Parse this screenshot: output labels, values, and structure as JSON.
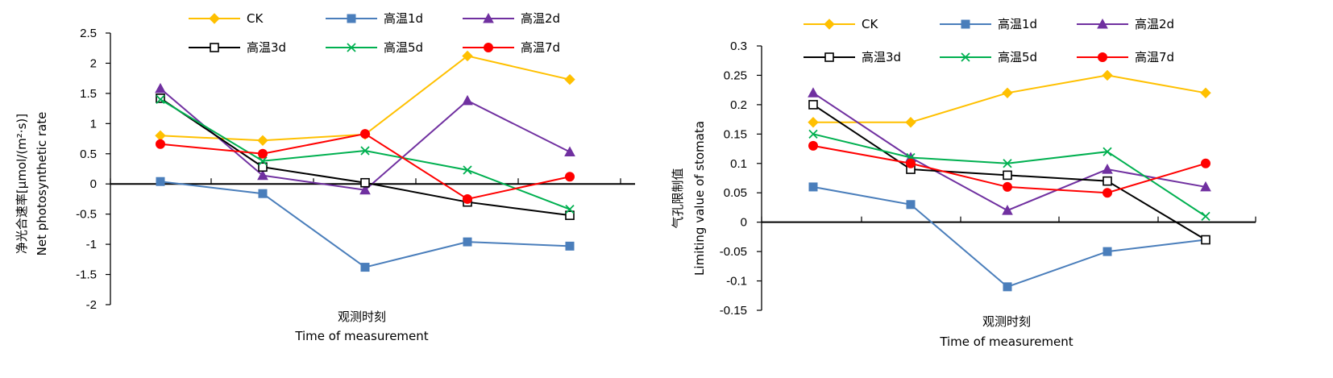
{
  "chart_data": [
    {
      "type": "line",
      "xlabel_cn": "观测时刻",
      "xlabel_en": "Time of measurement",
      "ylabel_cn": "净光合速率[μmol/(m²·s)]",
      "ylabel_en": "Net photosynthetic rate",
      "ylim": [
        -2,
        2.5
      ],
      "yticks": [
        "2.5",
        "2",
        "1.5",
        "1",
        "0.5",
        "0",
        "-0.5",
        "-1",
        "-1.5",
        "-2"
      ],
      "ytick_values": [
        2.5,
        2,
        1.5,
        1,
        0.5,
        0,
        -0.5,
        -1,
        -1.5,
        -2
      ],
      "grid": false,
      "legend": "top",
      "series": [
        {
          "name": "CK",
          "color": "#FFC000",
          "marker": "diamond",
          "values": [
            0.8,
            0.72,
            0.82,
            2.12,
            1.73
          ]
        },
        {
          "name": "高温1d",
          "color": "#4A7EBB",
          "marker": "square",
          "values": [
            0.04,
            -0.16,
            -1.38,
            -0.96,
            -1.03
          ]
        },
        {
          "name": "高温2d",
          "color": "#7030A0",
          "marker": "triangle",
          "values": [
            1.58,
            0.14,
            -0.1,
            1.38,
            0.53
          ]
        },
        {
          "name": "高温3d",
          "color": "#000000",
          "marker": "open-square",
          "values": [
            1.42,
            0.28,
            0.02,
            -0.3,
            -0.52
          ]
        },
        {
          "name": "高温5d",
          "color": "#00B050",
          "marker": "x",
          "values": [
            1.4,
            0.38,
            0.55,
            0.23,
            -0.42
          ]
        },
        {
          "name": "高温7d",
          "color": "#FF0000",
          "marker": "circle",
          "values": [
            0.66,
            0.5,
            0.83,
            -0.25,
            0.12
          ]
        }
      ]
    },
    {
      "type": "line",
      "xlabel_cn": "观测时刻",
      "xlabel_en": "Time of measurement",
      "ylabel_cn": "气孔限制值",
      "ylabel_en": "Limiting value of stomata",
      "ylim": [
        -0.15,
        0.3
      ],
      "yticks": [
        "0.3",
        "0.25",
        "0.2",
        "0.15",
        "0.1",
        "0.05",
        "0",
        "-0.05",
        "-0.1",
        "-0.15"
      ],
      "ytick_values": [
        0.3,
        0.25,
        0.2,
        0.15,
        0.1,
        0.05,
        0,
        -0.05,
        -0.1,
        -0.15
      ],
      "grid": false,
      "legend": "top",
      "series": [
        {
          "name": "CK",
          "color": "#FFC000",
          "marker": "diamond",
          "values": [
            0.17,
            0.17,
            0.22,
            0.25,
            0.22
          ]
        },
        {
          "name": "高温1d",
          "color": "#4A7EBB",
          "marker": "square",
          "values": [
            0.06,
            0.03,
            -0.11,
            -0.05,
            -0.03
          ]
        },
        {
          "name": "高温2d",
          "color": "#7030A0",
          "marker": "triangle",
          "values": [
            0.22,
            0.11,
            0.02,
            0.09,
            0.06
          ]
        },
        {
          "name": "高温3d",
          "color": "#000000",
          "marker": "open-square",
          "values": [
            0.2,
            0.09,
            0.08,
            0.07,
            -0.03
          ]
        },
        {
          "name": "高温5d",
          "color": "#00B050",
          "marker": "x",
          "values": [
            0.15,
            0.11,
            0.1,
            0.12,
            0.01
          ]
        },
        {
          "name": "高温7d",
          "color": "#FF0000",
          "marker": "circle",
          "values": [
            0.13,
            0.1,
            0.06,
            0.05,
            0.1
          ]
        }
      ]
    }
  ]
}
